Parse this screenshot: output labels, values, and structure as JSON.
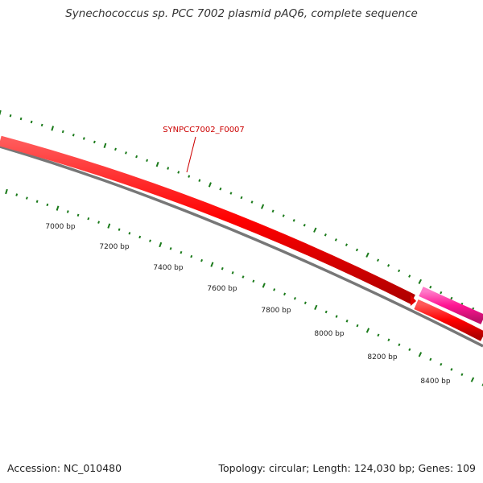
{
  "title": "Synechococcus sp. PCC 7002 plasmid pAQ6, complete sequence",
  "footer": {
    "accession": "Accession: NC_010480",
    "summary": "Topology: circular; Length: 124,030 bp; Genes: 109"
  },
  "map": {
    "gene_label": "SYNPCC7002_F0007",
    "ticks": [
      {
        "label": "7000 bp"
      },
      {
        "label": "7200 bp"
      },
      {
        "label": "7400 bp"
      },
      {
        "label": "7600 bp"
      },
      {
        "label": "7800 bp"
      },
      {
        "label": "8000 bp"
      },
      {
        "label": "8200 bp"
      },
      {
        "label": "8400 bp"
      }
    ],
    "colors": {
      "gene_main": "#ff0000",
      "gene_other": "#ff1493",
      "backbone": "#777777",
      "tick_marks": "#1a7a1a",
      "label": "#cc0000"
    }
  }
}
